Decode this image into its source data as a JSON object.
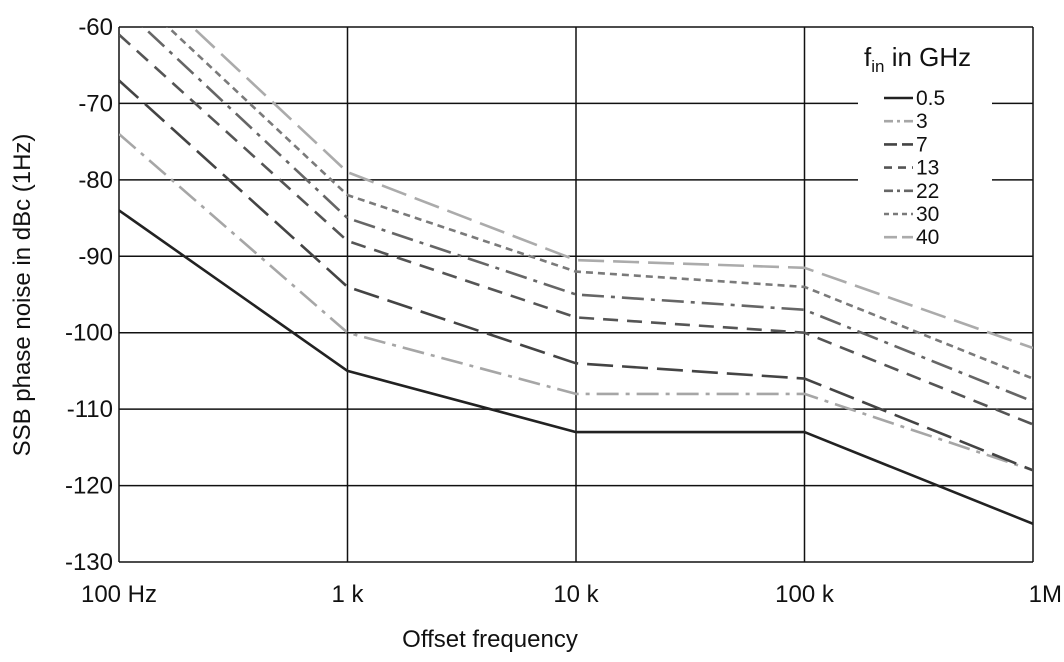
{
  "chart_data": {
    "type": "line",
    "x_scale": "log",
    "x": [
      100,
      1000,
      10000,
      100000,
      1000000
    ],
    "x_tick_labels": [
      "100 Hz",
      "1 k",
      "10 k",
      "100 k",
      "1M"
    ],
    "xlabel": "Offset frequency",
    "ylabel": "SSB phase noise in dBc (1Hz)",
    "ylim": [
      -130,
      -60
    ],
    "y_ticks": [
      -60,
      -70,
      -80,
      -90,
      -100,
      -110,
      -120,
      -130
    ],
    "grid": true,
    "legend": {
      "title_main": "f",
      "title_sub": "in",
      "title_rest": " in GHz",
      "placement": "top-right"
    },
    "series": [
      {
        "name": "0.5",
        "values": [
          -84,
          -105,
          -113,
          -113,
          -125
        ],
        "color": "#222222",
        "dash": "solid"
      },
      {
        "name": "3",
        "values": [
          -74,
          -100,
          -108,
          -108,
          -118
        ],
        "color": "#a6a6a6",
        "dash": "dashdot"
      },
      {
        "name": "7",
        "values": [
          -67,
          -94,
          -104,
          -106,
          -118
        ],
        "color": "#444444",
        "dash": "longdash"
      },
      {
        "name": "13",
        "values": [
          -61,
          -88,
          -98,
          -100,
          -112
        ],
        "color": "#555555",
        "dash": "dash"
      },
      {
        "name": "22",
        "values": [
          -57,
          -85,
          -95,
          -97,
          -109
        ],
        "color": "#666666",
        "dash": "dashdot"
      },
      {
        "name": "30",
        "values": [
          -54,
          -82,
          -92,
          -94,
          -106
        ],
        "color": "#7a7a7a",
        "dash": "shortdash"
      },
      {
        "name": "40",
        "values": [
          -51,
          -79,
          -90.5,
          -91.5,
          -102
        ],
        "color": "#ababab",
        "dash": "longdash"
      }
    ]
  }
}
